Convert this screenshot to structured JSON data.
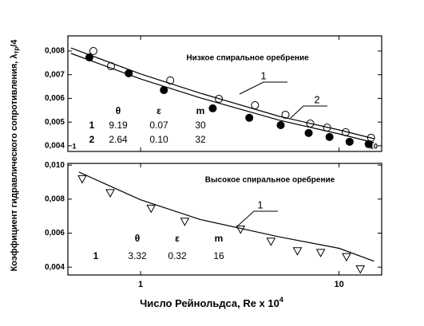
{
  "chart_data": [
    {
      "type": "line",
      "title": "Низкое спиральное оребрение",
      "xlog": true,
      "xlim": [
        0.43,
        16.4
      ],
      "ylim": [
        0.00376,
        0.00864
      ],
      "xticks": [
        1,
        10
      ],
      "yticks": [
        {
          "value": 0.004,
          "label": "0,004"
        },
        {
          "value": 0.005,
          "label": "0,005"
        },
        {
          "value": 0.006,
          "label": "0,006"
        },
        {
          "value": 0.007,
          "label": "0,007"
        },
        {
          "value": 0.008,
          "label": "0,008"
        }
      ],
      "series": [
        {
          "marker": "open-circle",
          "color": "#000000",
          "x": [
            0.578,
            0.709,
            1.41,
            2.48,
            3.77,
            5.37,
            7.16,
            8.7,
            10.8,
            14.5
          ],
          "values": [
            0.008,
            0.00736,
            0.00676,
            0.00598,
            0.00571,
            0.00531,
            0.00494,
            0.00477,
            0.00457,
            0.00434
          ]
        },
        {
          "marker": "filled-circle",
          "color": "#000000",
          "x": [
            0.552,
            0.871,
            1.31,
            2.31,
            3.53,
            5.08,
            7.03,
            8.95,
            11.3,
            14.1
          ],
          "values": [
            0.00773,
            0.00706,
            0.00635,
            0.00558,
            0.00518,
            0.00487,
            0.00454,
            0.00437,
            0.00417,
            0.00407
          ]
        },
        {
          "name": "1",
          "color": "#000000",
          "x": [
            0.446,
            1,
            2,
            5,
            10,
            15
          ],
          "values": [
            0.00813,
            0.00703,
            0.00622,
            0.00524,
            0.00467,
            0.0043
          ]
        },
        {
          "name": "2",
          "color": "#000000",
          "x": [
            0.446,
            1,
            2,
            5,
            10,
            15
          ],
          "values": [
            0.0079,
            0.00682,
            0.00602,
            0.00508,
            0.0045,
            0.00413
          ]
        }
      ],
      "table": {
        "header": [
          "θ",
          "ε",
          "m"
        ],
        "rows": [
          [
            "1",
            "9.19",
            "0.07",
            "30"
          ],
          [
            "2",
            "2.64",
            "0.10",
            "32"
          ]
        ]
      }
    },
    {
      "type": "line",
      "title": "Высокое спиральное оребрение",
      "xlog": true,
      "xlim": [
        0.43,
        16.4
      ],
      "ylim": [
        0.00354,
        0.0101
      ],
      "xticks": [
        1,
        10
      ],
      "yticks": [
        {
          "value": 0.004,
          "label": "0,004"
        },
        {
          "value": 0.006,
          "label": "0,006"
        },
        {
          "value": 0.008,
          "label": "0,008"
        },
        {
          "value": 0.01,
          "label": "0,010"
        }
      ],
      "x_label": [
        "Число Рейнольдса, Re x 10",
        "4"
      ],
      "series": [
        {
          "marker": "open-triangle-down",
          "color": "#000000",
          "x": [
            0.508,
            0.703,
            1.13,
            1.67,
            3.19,
            4.54,
            6.17,
            8.08,
            10.9,
            12.8
          ],
          "values": [
            0.00919,
            0.00837,
            0.00746,
            0.00669,
            0.00623,
            0.00552,
            0.00496,
            0.00486,
            0.00461,
            0.00389
          ]
        },
        {
          "name": "1",
          "color": "#000000",
          "x": [
            0.489,
            1,
            2,
            5,
            10,
            15
          ],
          "values": [
            0.00959,
            0.00796,
            0.0068,
            0.00578,
            0.00511,
            0.00435
          ]
        }
      ],
      "table": {
        "header": [
          "θ",
          "ε",
          "m"
        ],
        "rows": [
          [
            "1",
            "3.32",
            "0.32",
            "16"
          ]
        ]
      }
    }
  ],
  "y_label": [
    "Коэффициент гидравлического сопротивления, λ",
    "тр",
    "/4"
  ]
}
